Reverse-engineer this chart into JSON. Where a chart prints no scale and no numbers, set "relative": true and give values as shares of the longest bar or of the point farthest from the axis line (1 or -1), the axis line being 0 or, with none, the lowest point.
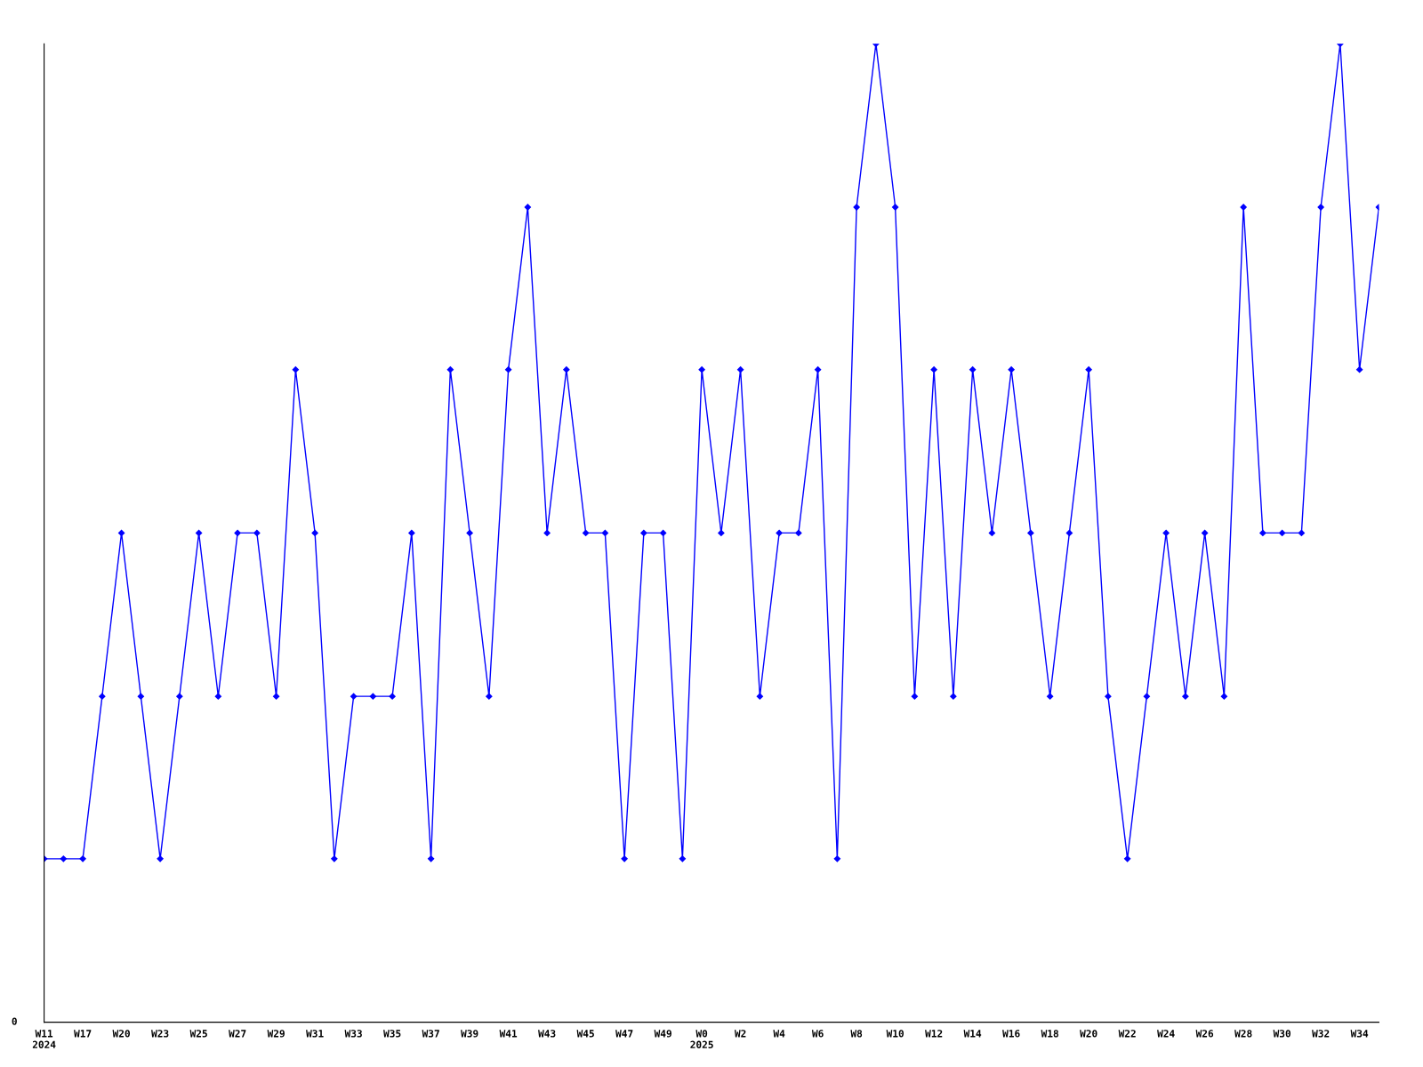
{
  "chart_data": {
    "type": "line",
    "relative": true,
    "categories": [
      "W11\n2024",
      null,
      "W17",
      null,
      "W20",
      null,
      "W23",
      null,
      "W25",
      null,
      "W27",
      null,
      "W29",
      null,
      "W31",
      null,
      "W33",
      null,
      "W35",
      null,
      "W37",
      null,
      "W39",
      null,
      "W41",
      null,
      "W43",
      null,
      "W45",
      null,
      "W47",
      null,
      "W49",
      null,
      "W0\n2025",
      null,
      "W2",
      null,
      "W4",
      null,
      "W6",
      null,
      "W8",
      null,
      "W10",
      null,
      "W12",
      null,
      "W14",
      null,
      "W16",
      null,
      "W18",
      null,
      "W20",
      null,
      "W22",
      null,
      "W24",
      null,
      "W26",
      null,
      "W28",
      null,
      "W30",
      null,
      "W32",
      null,
      "W34",
      null
    ],
    "series": [
      {
        "color": "#0000ff",
        "values": [
          0.167,
          0.167,
          0.167,
          0.333,
          0.5,
          0.333,
          0.167,
          0.333,
          0.5,
          0.333,
          0.5,
          0.5,
          0.333,
          0.667,
          0.5,
          0.167,
          0.333,
          0.333,
          0.333,
          0.5,
          0.167,
          0.667,
          0.5,
          0.333,
          0.667,
          0.833,
          0.5,
          0.667,
          0.5,
          0.5,
          0.167,
          0.5,
          0.5,
          0.167,
          0.667,
          0.5,
          0.667,
          0.333,
          0.5,
          0.5,
          0.667,
          0.167,
          0.833,
          1,
          0.833,
          0.333,
          0.667,
          0.333,
          0.667,
          0.5,
          0.667,
          0.5,
          0.333,
          0.5,
          0.667,
          0.333,
          0.167,
          0.333,
          0.5,
          0.333,
          0.5,
          0.333,
          0.833,
          0.5,
          0.5,
          0.5,
          0.833,
          1,
          0.667,
          0.833
        ]
      }
    ],
    "annotations": [
      "0"
    ],
    "marker": "diamond",
    "line_style": "solid",
    "grid": false,
    "legend": false
  }
}
